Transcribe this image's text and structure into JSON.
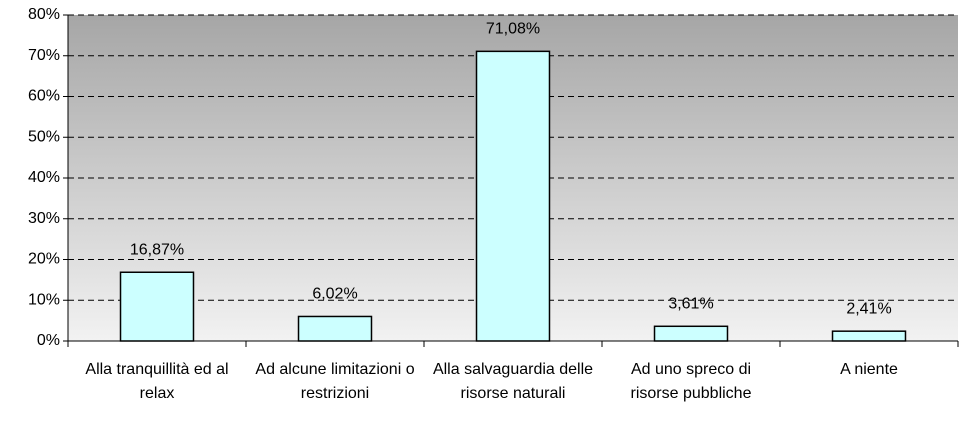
{
  "chart_data": {
    "type": "bar",
    "categories": [
      "Alla tranquillità ed al relax",
      "Ad alcune limitazioni o restrizioni",
      "Alla salvaguardia delle risorse naturali",
      "Ad uno spreco di risorse pubbliche",
      "A niente"
    ],
    "values": [
      16.87,
      6.02,
      71.08,
      3.61,
      2.41
    ],
    "value_labels": [
      "16,87%",
      "6,02%",
      "71,08%",
      "3,61%",
      "2,41%"
    ],
    "color": "#ccffff",
    "ylim": [
      0,
      80
    ],
    "yticks": [
      {
        "value": 0,
        "label": "0%"
      },
      {
        "value": 10,
        "label": "10%"
      },
      {
        "value": 20,
        "label": "20%"
      },
      {
        "value": 30,
        "label": "30%"
      },
      {
        "value": 40,
        "label": "40%"
      },
      {
        "value": 50,
        "label": "50%"
      },
      {
        "value": 60,
        "label": "60%"
      },
      {
        "value": 70,
        "label": "70%"
      },
      {
        "value": 80,
        "label": "80%"
      }
    ],
    "grid": true
  }
}
